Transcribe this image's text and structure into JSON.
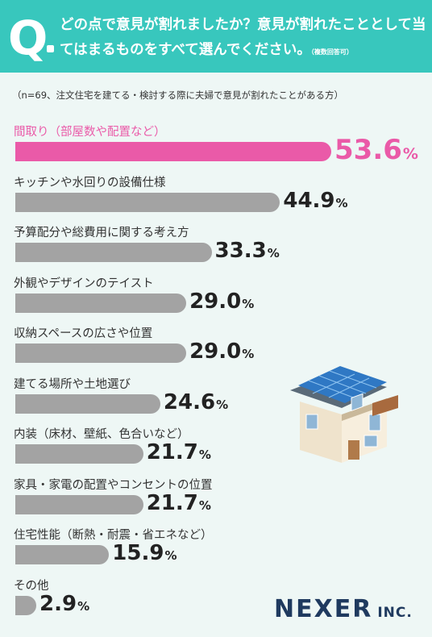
{
  "header": {
    "q_letter": "Q",
    "question": "どの点で意見が割れましたか？意見が割れたこととして当てはまるものをすべて選んでください。",
    "note": "（複数回答可）"
  },
  "subtitle": "（n=69、注文住宅を建てる・検討する際に夫婦で意見が割れたことがある方）",
  "colors": {
    "highlight": "#ea5aa8",
    "bar": "#a3a3a3",
    "header": "#38c7bd"
  },
  "logo": {
    "main": "NEXER",
    "suffix": "INC."
  },
  "chart_data": {
    "type": "bar",
    "orientation": "horizontal",
    "unit": "%",
    "categories": [
      "間取り（部屋数や配置など）",
      "キッチンや水回りの設備仕様",
      "予算配分や総費用に関する考え方",
      "外観やデザインのテイスト",
      "収納スペースの広さや位置",
      "建てる場所や土地選び",
      "内装（床材、壁紙、色合いなど）",
      "家具・家電の配置やコンセントの位置",
      "住宅性能（断熱・耐震・省エネなど）",
      "その他"
    ],
    "values": [
      53.6,
      44.9,
      33.3,
      29.0,
      29.0,
      24.6,
      21.7,
      21.7,
      15.9,
      2.9
    ],
    "value_labels": [
      "53.6",
      "44.9",
      "33.3",
      "29.0",
      "29.0",
      "24.6",
      "21.7",
      "21.7",
      "15.9",
      "2.9"
    ],
    "highlight_index": 0
  }
}
